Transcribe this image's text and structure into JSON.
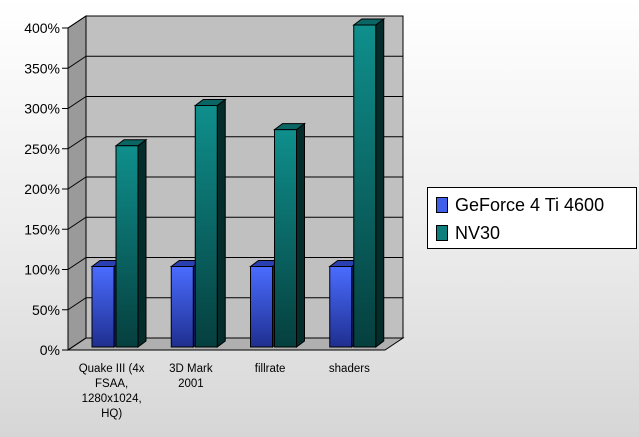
{
  "chart_data": {
    "type": "bar",
    "title": "",
    "xlabel": "",
    "ylabel": "",
    "ylim": [
      0,
      400
    ],
    "yticks": [
      "0%",
      "50%",
      "100%",
      "150%",
      "200%",
      "250%",
      "300%",
      "350%",
      "400%"
    ],
    "categories": [
      [
        "Quake III (4x",
        "FSAA,",
        "1280x1024,",
        "HQ)"
      ],
      [
        "3D Mark",
        "2001"
      ],
      [
        "fillrate"
      ],
      [
        "shaders"
      ]
    ],
    "series": [
      {
        "name": "GeForce 4 Ti 4600",
        "values": [
          100,
          100,
          100,
          100
        ],
        "color": "#3f5fe8"
      },
      {
        "name": "NV30",
        "values": [
          250,
          300,
          270,
          400
        ],
        "color": "#0c7f7d"
      }
    ],
    "grid": true,
    "legend_position": "right"
  }
}
